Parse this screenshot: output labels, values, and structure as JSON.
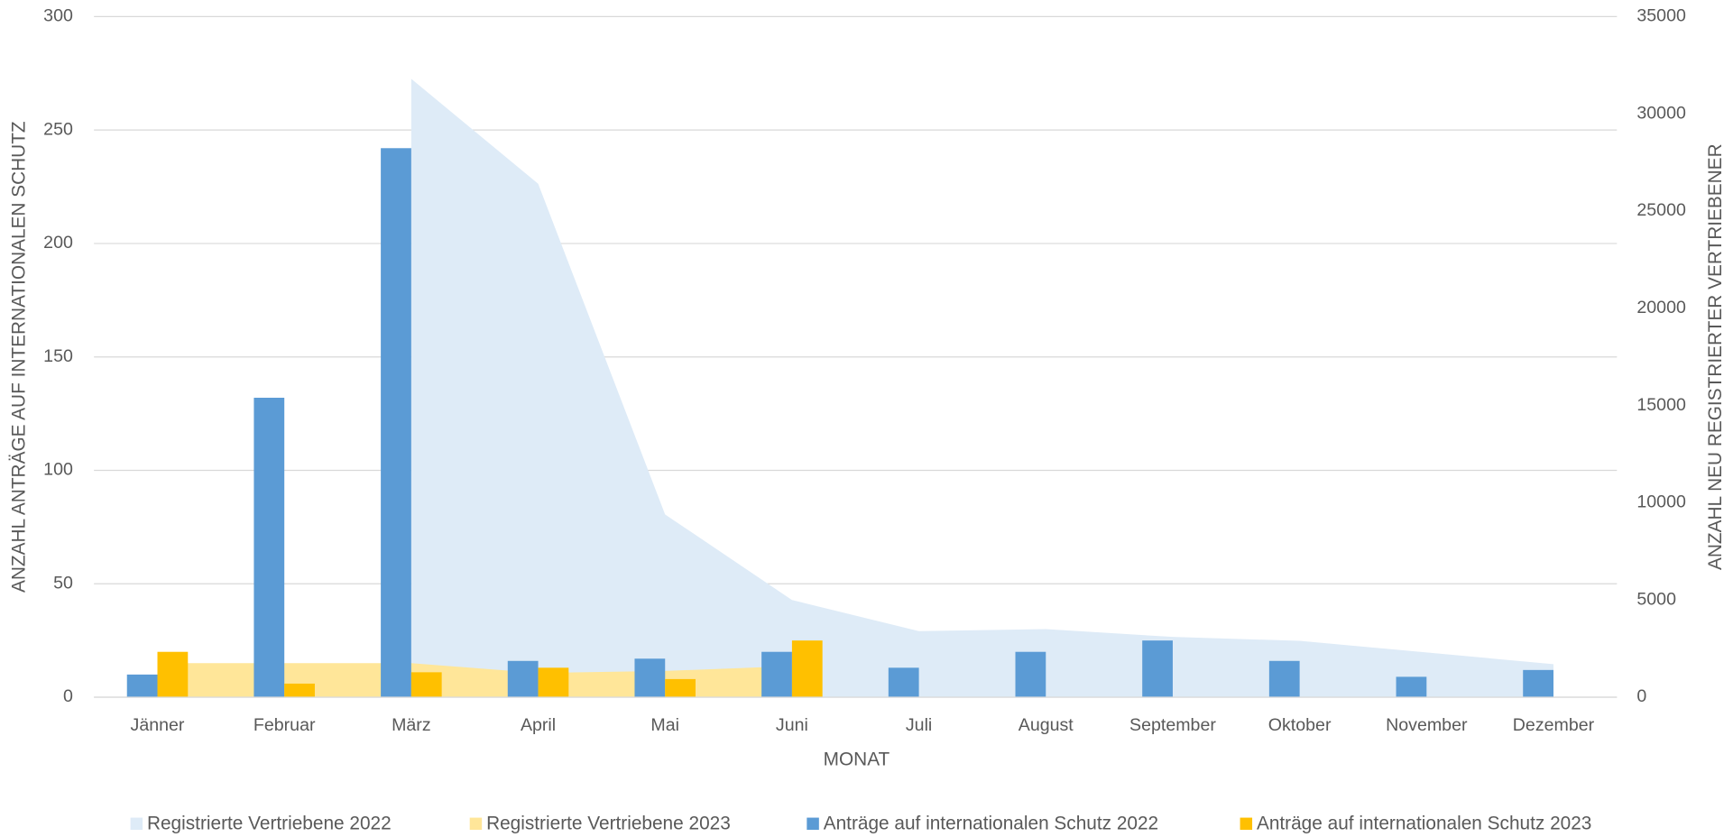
{
  "chart_data": {
    "type": "bar",
    "categories": [
      "Jänner",
      "Februar",
      "März",
      "April",
      "Mai",
      "Juni",
      "Juli",
      "August",
      "September",
      "Oktober",
      "November",
      "Dezember"
    ],
    "series": [
      {
        "name": "Registrierte Vertriebene 2022",
        "type": "area",
        "axis": "y2",
        "color": "#deebf7",
        "values": [
          null,
          null,
          31800,
          26400,
          9400,
          5000,
          3400,
          3500,
          3100,
          2900,
          2300,
          1700
        ]
      },
      {
        "name": "Registrierte Vertriebene 2023",
        "type": "area",
        "axis": "y2",
        "color": "#ffe699",
        "values": [
          1750,
          1750,
          1750,
          1250,
          1350,
          1600,
          null,
          null,
          null,
          null,
          null,
          null
        ]
      },
      {
        "name": "Anträge auf internationalen Schutz 2022",
        "type": "bar",
        "color": "#5b9bd5",
        "values": [
          10,
          132,
          242,
          16,
          17,
          20,
          13,
          20,
          25,
          16,
          9,
          12
        ]
      },
      {
        "name": "Anträge auf internationalen Schutz 2023",
        "type": "bar",
        "color": "#ffc000",
        "values": [
          20,
          6,
          11,
          13,
          8,
          25,
          null,
          null,
          null,
          null,
          null,
          null
        ]
      }
    ],
    "ylabel": "ANZAHL ANTRÄGE AUF INTERNATIONALEN SCHUTZ",
    "y2label": "ANZAHL NEU REGISTRIERTER VERTRIEBENER",
    "xlabel": "MONAT",
    "ylim": [
      0,
      300
    ],
    "yticks": [
      0,
      50,
      100,
      150,
      200,
      250,
      300
    ],
    "y2lim": [
      0,
      35000
    ],
    "y2ticks": [
      0,
      5000,
      10000,
      15000,
      20000,
      25000,
      30000,
      35000
    ],
    "grid": true,
    "legend": "bottom"
  }
}
